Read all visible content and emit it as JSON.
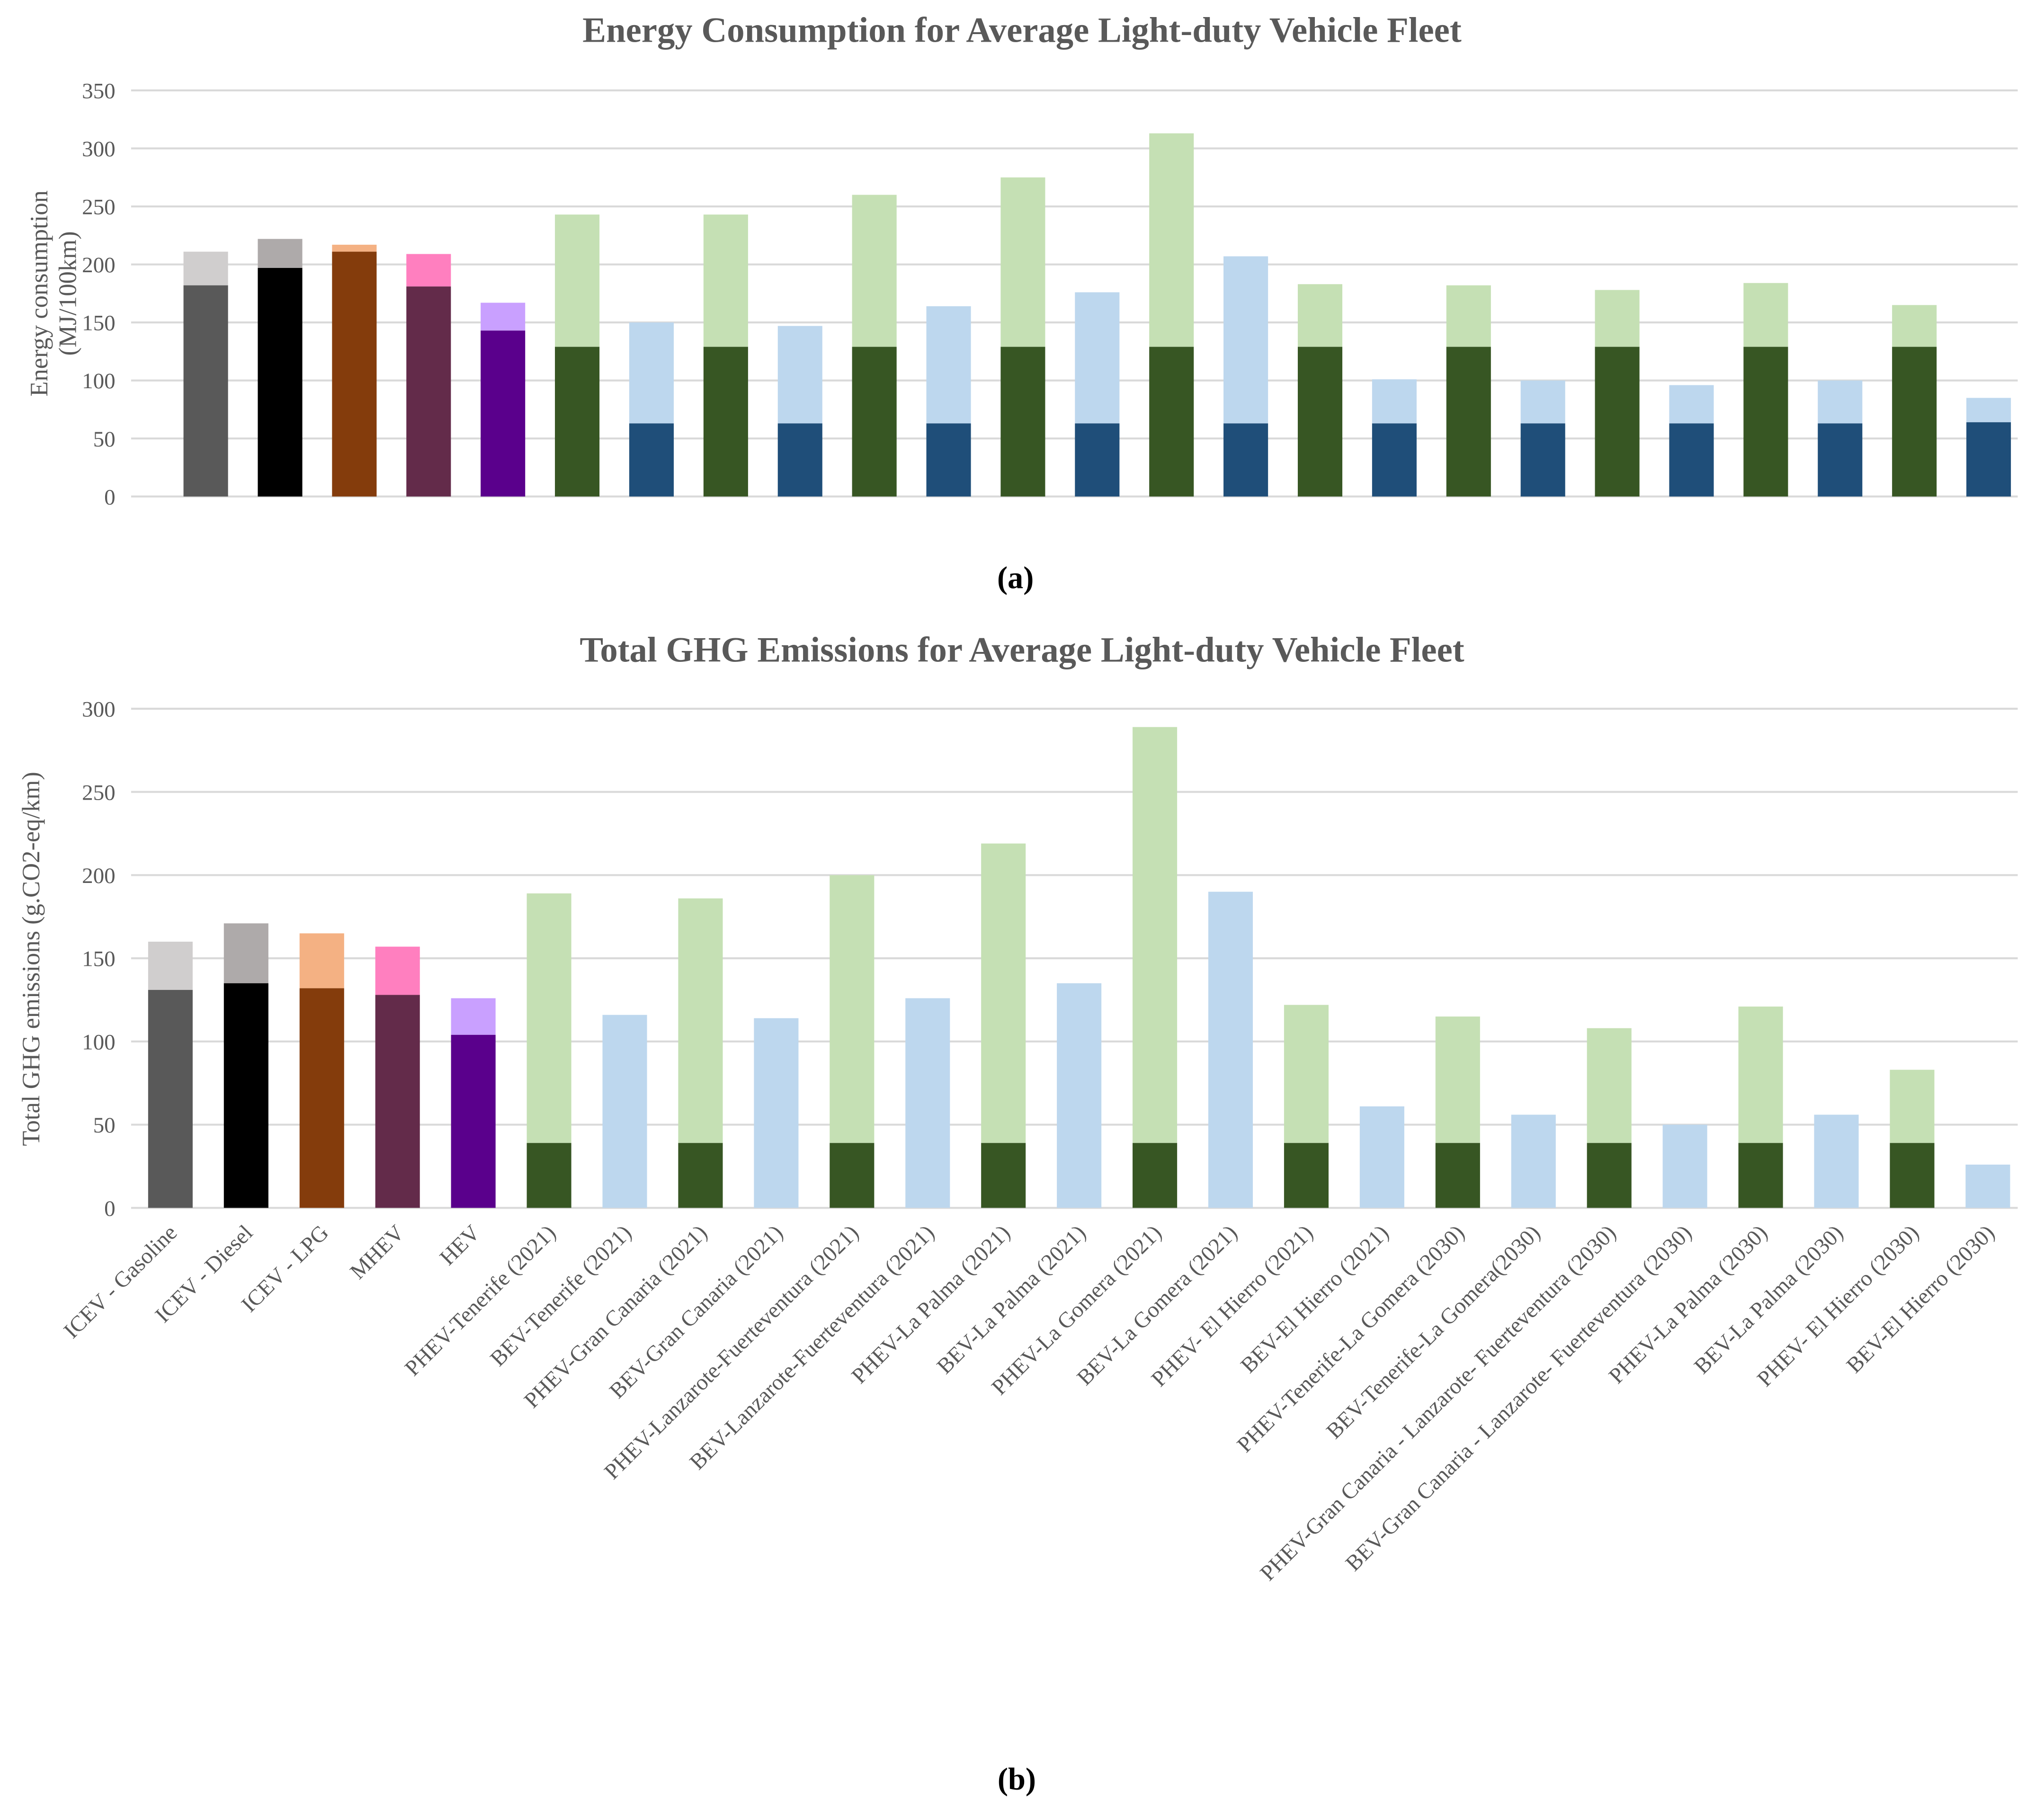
{
  "chart_data": [
    {
      "type": "bar",
      "stacked": true,
      "title": "Energy Consumption for Average Light-duty Vehicle Fleet",
      "panel_label": "(a)",
      "ylabel_lines": [
        "Energy consumption",
        "(MJ/100km)"
      ],
      "xlabel": "",
      "ylim": [
        0,
        350
      ],
      "yticks": [
        0,
        50,
        100,
        150,
        200,
        250,
        300,
        350
      ],
      "grid": true,
      "show_category_labels": false,
      "note": "values are stacked: base segment (dark) and total height (light top)",
      "base": [
        182,
        197,
        211,
        181,
        143,
        129,
        63,
        129,
        63,
        129,
        63,
        129,
        63,
        129,
        63,
        129,
        63,
        129,
        63,
        129,
        63,
        129,
        63,
        129,
        64
      ],
      "total": [
        211,
        222,
        217,
        209,
        167,
        243,
        150,
        243,
        147,
        260,
        164,
        275,
        176,
        313,
        207,
        183,
        101,
        182,
        100,
        178,
        96,
        184,
        100,
        165,
        85
      ]
    },
    {
      "type": "bar",
      "stacked": true,
      "title": "Total GHG Emissions for Average Light-duty Vehicle Fleet",
      "panel_label": "(b)",
      "ylabel_lines": [
        "Total GHG emissions (g.CO2-eq/km)"
      ],
      "xlabel": "",
      "ylim": [
        0,
        300
      ],
      "yticks": [
        0,
        50,
        100,
        150,
        200,
        250,
        300
      ],
      "grid": true,
      "show_category_labels": true,
      "base": [
        131,
        135,
        132,
        128,
        104,
        39,
        0,
        39,
        0,
        39,
        0,
        39,
        0,
        39,
        0,
        39,
        0,
        39,
        0,
        39,
        0,
        39,
        0,
        39,
        0
      ],
      "total": [
        160,
        171,
        165,
        157,
        126,
        189,
        116,
        186,
        114,
        200,
        126,
        219,
        135,
        289,
        190,
        122,
        61,
        115,
        56,
        108,
        50,
        121,
        56,
        83,
        26
      ]
    }
  ],
  "categories": [
    "ICEV - Gasoline",
    "ICEV - Diesel",
    "ICEV - LPG",
    "MHEV",
    "HEV",
    "PHEV-Tenerife (2021)",
    "BEV-Tenerife (2021)",
    "PHEV-Gran Canaria (2021)",
    "BEV-Gran Canaria  (2021)",
    "PHEV-Lanzarote-Fuerteventura  (2021)",
    "BEV-Lanzarote-Fuerteventura  (2021)",
    "PHEV-La Palma  (2021)",
    "BEV-La Palma  (2021)",
    "PHEV-La Gomera  (2021)",
    "BEV-La Gomera  (2021)",
    "PHEV- El Hierro  (2021)",
    "BEV-El Hierro  (2021)",
    "PHEV-Tenerife-La  Gomera (2030)",
    "BEV-Tenerife-La Gomera(2030)",
    "PHEV-Gran Canaria - Lanzarote- Fuerteventura  (2030)",
    "BEV-Gran Canaria - Lanzarote- Fuerteventura  (2030)",
    "PHEV-La Palma (2030)",
    "BEV-La Palma (2030)",
    "PHEV- El Hierro (2030)",
    "BEV-El Hierro (2030)"
  ],
  "colors": {
    "base": [
      "#595959",
      "#000000",
      "#843c0c",
      "#632b4a",
      "#5a008c",
      "#375623",
      "#1f4e79"
    ],
    "top": [
      "#d0cece",
      "#aeaaaa",
      "#f4b183",
      "#ff7fbf",
      "#c9a0ff",
      "#c5e0b4",
      "#bdd7ee"
    ]
  }
}
